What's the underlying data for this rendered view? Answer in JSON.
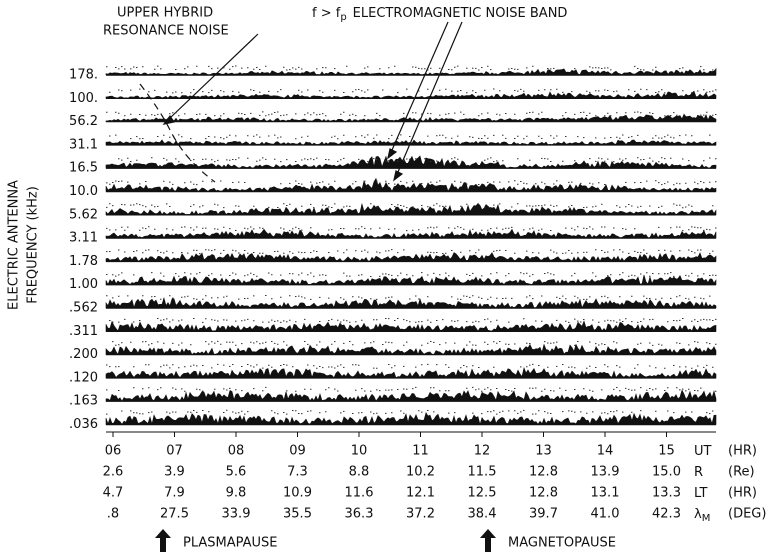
{
  "annotations": {
    "upper_hybrid": [
      "UPPER HYBRID",
      "RESONANCE NOISE"
    ],
    "em_band": {
      "prefix": "f > f",
      "sub": "p",
      "suffix": "ELECTROMAGNETIC NOISE BAND"
    }
  },
  "y_axis_label": [
    "ELECTRIC ANTENNA",
    "FREQUENCY (kHz)"
  ],
  "channels": [
    "178.",
    "100.",
    "56.2",
    "31.1",
    "16.5",
    "10.0",
    "5.62",
    "3.11",
    "1.78",
    "1.00",
    ".562",
    ".311",
    ".200",
    ".120",
    ".163",
    ".036"
  ],
  "x_rows": [
    {
      "values": [
        "06",
        "07",
        "08",
        "09",
        "10",
        "11",
        "12",
        "13",
        "14",
        "15"
      ],
      "label": "UT",
      "unit": "(HR)"
    },
    {
      "values": [
        "2.6",
        "3.9",
        "5.6",
        "7.3",
        "8.8",
        "10.2",
        "11.5",
        "12.8",
        "13.9",
        "15.0"
      ],
      "label": "R",
      "unit": "(Re)"
    },
    {
      "values": [
        "4.7",
        "7.9",
        "9.8",
        "10.9",
        "11.6",
        "12.1",
        "12.5",
        "12.8",
        "13.1",
        "13.3"
      ],
      "label": "LT",
      "unit": "(HR)"
    },
    {
      "values": [
        ".8",
        "27.5",
        "33.9",
        "35.5",
        "36.3",
        "37.2",
        "38.4",
        "39.7",
        "41.0",
        "42.3"
      ],
      "label": "λ",
      "label_sub": "M",
      "unit": "(DEG)"
    }
  ],
  "markers": [
    {
      "label": "PLASMAPAUSE"
    },
    {
      "label": "MAGNETOPAUSE"
    }
  ]
}
